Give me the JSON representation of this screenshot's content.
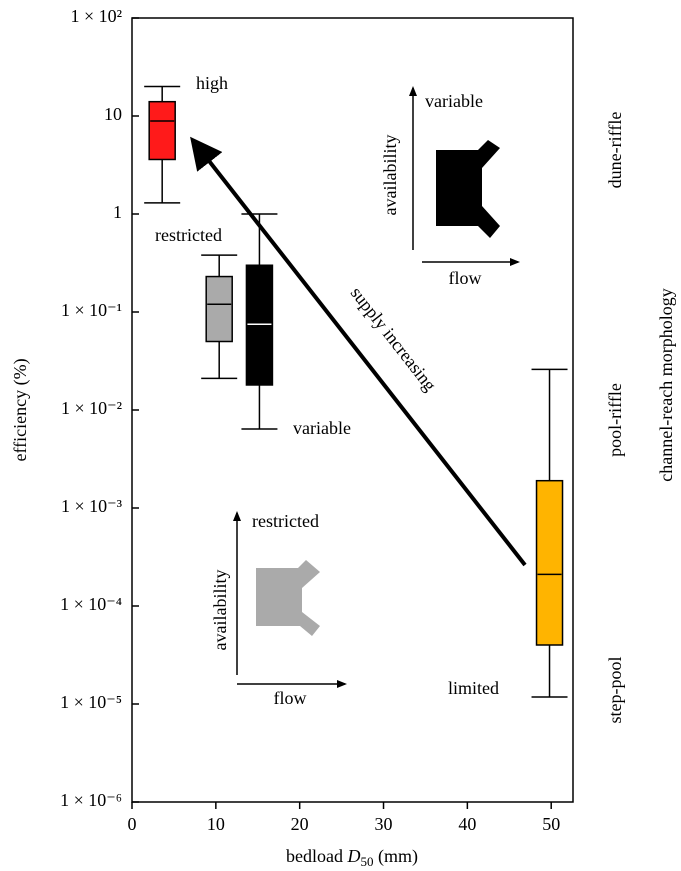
{
  "chart_data": {
    "type": "box",
    "x_label": [
      "bedload ",
      "D",
      "50",
      " (mm)"
    ],
    "y_label": "efficiency (%)",
    "y2_label": "channel-reach morphology",
    "y_scale": "log",
    "xlim": [
      0,
      52.6
    ],
    "xticks": [
      0,
      10,
      20,
      30,
      40,
      50
    ],
    "ylim": [
      1e-06,
      100
    ],
    "yticks": [
      {
        "value": 100,
        "label": "1 × 10²"
      },
      10,
      1,
      {
        "value": 0.1,
        "label": "1 × 10⁻¹"
      },
      {
        "value": 0.01,
        "label": "1 × 10⁻²"
      },
      {
        "value": 0.001,
        "label": "1 × 10⁻³"
      },
      {
        "value": 0.0001,
        "label": "1 × 10⁻⁴"
      },
      {
        "value": 1e-05,
        "label": "1 × 10⁻⁵"
      },
      {
        "value": 1e-06,
        "label": "1 × 10⁻⁶"
      }
    ],
    "boxes": [
      {
        "x": 3.6,
        "whisker_low": 1.3,
        "q1": 3.6,
        "median": 8.9,
        "q3": 14,
        "whisker_high": 20,
        "color": "#ff1a1a",
        "median_color": "#000000"
      },
      {
        "x": 10.4,
        "whisker_low": 0.021,
        "q1": 0.05,
        "median": 0.12,
        "q3": 0.23,
        "whisker_high": 0.38,
        "color": "#aaaaaa",
        "median_color": "#000000"
      },
      {
        "x": 15.2,
        "whisker_low": 0.0064,
        "q1": 0.018,
        "median": 0.075,
        "q3": 0.3,
        "whisker_high": 1,
        "color": "#000000",
        "median_color": "#ffffff"
      },
      {
        "x": 49.8,
        "whisker_low": 1.18e-05,
        "q1": 4e-05,
        "median": 0.00021,
        "q3": 0.0019,
        "whisker_high": 0.026,
        "color": "#ffb400",
        "median_color": "#000000"
      }
    ],
    "annotations": {
      "high": "high",
      "restricted": "restricted",
      "variable": "variable",
      "limited": "limited",
      "supply": "supply increasing",
      "inset_top": {
        "availability": "availability",
        "level": "variable",
        "flow": "flow"
      },
      "inset_bottom": {
        "availability": "availability",
        "level": "restricted",
        "flow": "flow"
      },
      "morphology": [
        "dune-riffle",
        "pool-riffle",
        "step-pool"
      ]
    }
  }
}
